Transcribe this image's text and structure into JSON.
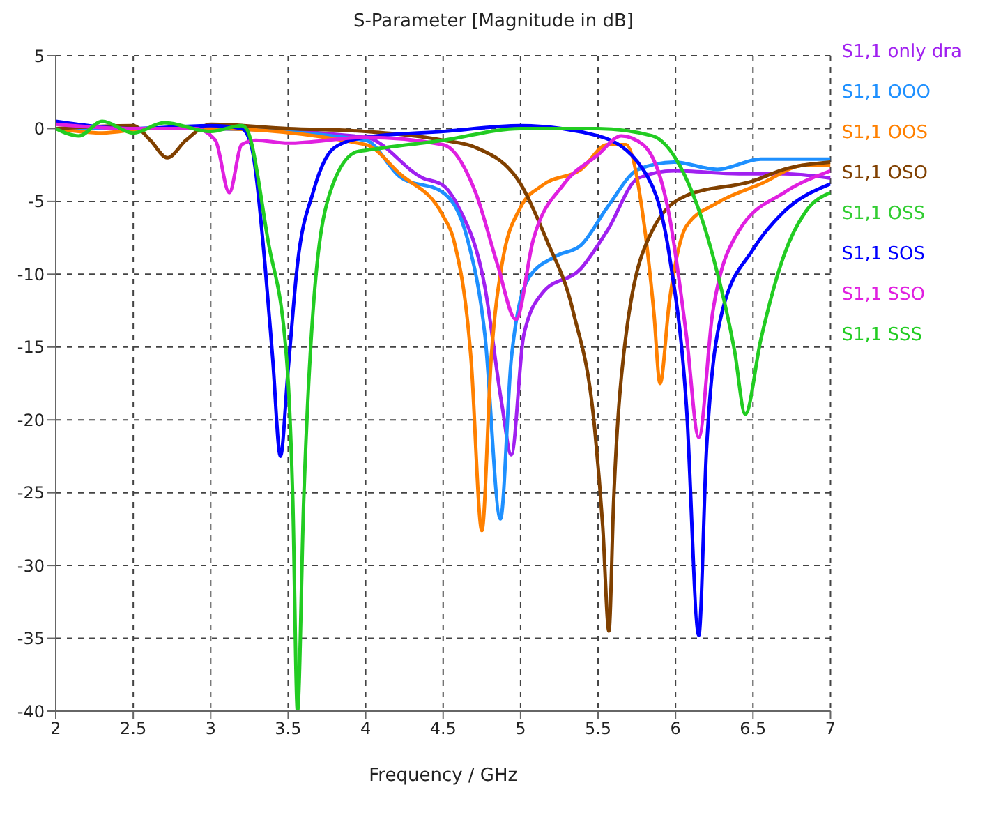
{
  "chart_data": {
    "type": "line",
    "title": "S-Parameter [Magnitude in dB]",
    "xlabel": "Frequency / GHz",
    "xlim": [
      2,
      7
    ],
    "xticks": [
      2,
      2.5,
      3,
      3.5,
      4,
      4.5,
      5,
      5.5,
      6,
      6.5,
      7
    ],
    "ylim": [
      -40,
      5
    ],
    "yticks": [
      5,
      0,
      -5,
      -10,
      -15,
      -20,
      -25,
      -30,
      -35,
      -40
    ],
    "grid": true,
    "legend": "right",
    "marker": "none",
    "line_style": "solid",
    "series": [
      {
        "name": "S1,1 only dra",
        "color": "#a020f0",
        "x": [
          2,
          3,
          4,
          4.37,
          4.5,
          4.6,
          4.77,
          4.88,
          4.94,
          5.02,
          5.14,
          5.39,
          5.56,
          5.76,
          5.99,
          6.41,
          6.7,
          7
        ],
        "values": [
          0,
          0,
          -0.6,
          -3.4,
          -3.9,
          -5.4,
          -10.9,
          -19,
          -22.4,
          -14.2,
          -11.3,
          -9.6,
          -7,
          -3.4,
          -2.9,
          -3.1,
          -3.1,
          -3.4
        ]
      },
      {
        "name": "S1,1 OOO",
        "color": "#1e90ff",
        "x": [
          2,
          3,
          4,
          4.22,
          4.5,
          4.66,
          4.77,
          4.87,
          4.94,
          5.05,
          5.22,
          5.39,
          5.56,
          5.76,
          5.99,
          6.27,
          6.55,
          7
        ],
        "values": [
          0,
          0,
          -0.8,
          -3.3,
          -4.4,
          -7.7,
          -14.2,
          -26.8,
          -15.8,
          -10.3,
          -8.8,
          -8,
          -5.4,
          -2.8,
          -2.3,
          -2.8,
          -2.1,
          -2.1
        ]
      },
      {
        "name": "S1,1 OOS",
        "color": "#ff8000",
        "x": [
          2,
          2.3,
          2.6,
          3,
          4,
          4.22,
          4.5,
          4.57,
          4.68,
          4.75,
          4.81,
          4.88,
          5,
          5.14,
          5.39,
          5.56,
          5.68,
          5.79,
          5.86,
          5.9,
          5.96,
          6.07,
          6.27,
          6.55,
          6.84,
          7
        ],
        "values": [
          0,
          -0.3,
          0,
          0,
          -1.1,
          -3.1,
          -6,
          -7.7,
          -15.8,
          -27.6,
          -15.8,
          -9.3,
          -5.4,
          -3.9,
          -2.8,
          -1.1,
          -1.1,
          -6,
          -12.6,
          -17.5,
          -11.9,
          -6.7,
          -5.1,
          -3.8,
          -2.5,
          -2.5
        ]
      },
      {
        "name": "S1,1 OSO",
        "color": "#804000",
        "x": [
          2,
          2.5,
          2.61,
          2.72,
          2.84,
          3,
          3.5,
          4,
          4.5,
          4.71,
          5,
          5.17,
          5.34,
          5.48,
          5.53,
          5.57,
          5.6,
          5.68,
          5.85,
          6.07,
          6.5,
          6.7,
          7
        ],
        "values": [
          0,
          0.2,
          -0.8,
          -2,
          -0.8,
          0.3,
          0,
          -0.2,
          -0.8,
          -1.3,
          -3.8,
          -7.7,
          -12.6,
          -20.8,
          -27.3,
          -34.5,
          -25.7,
          -14.2,
          -7,
          -4.6,
          -3.6,
          -2.8,
          -2.3
        ]
      },
      {
        "name": "S1,1 OSS",
        "color": "#32cd32"
      },
      {
        "name": "S1,1 SOS",
        "color": "#0000ff",
        "x": [
          2,
          2.5,
          3,
          3.2,
          3.26,
          3.35,
          3.4,
          3.45,
          3.5,
          3.56,
          3.66,
          3.8,
          4,
          4.5,
          5,
          5.5,
          5.79,
          5.96,
          6.07,
          6.15,
          6.2,
          6.3,
          6.5,
          6.7,
          7
        ],
        "values": [
          0.5,
          0,
          0.2,
          0,
          -1.1,
          -9.3,
          -15.8,
          -22.5,
          -16.5,
          -9.3,
          -4.4,
          -1.3,
          -0.6,
          -0.2,
          0.2,
          -0.5,
          -2.8,
          -8.7,
          -19,
          -34.8,
          -22,
          -12.6,
          -8.3,
          -5.7,
          -3.8
        ]
      },
      {
        "name": "S1,1 SSO",
        "color": "#e020e0",
        "x": [
          2,
          2.5,
          2.9,
          3.03,
          3.12,
          3.2,
          3.29,
          3.5,
          4,
          4.5,
          4.71,
          4.85,
          4.97,
          5.08,
          5.28,
          5.5,
          5.65,
          5.79,
          5.96,
          6.07,
          6.15,
          6.24,
          6.41,
          6.7,
          7
        ],
        "values": [
          0.3,
          0,
          0,
          -0.8,
          -4.4,
          -1.1,
          -0.8,
          -1,
          -0.6,
          -1.1,
          -4.4,
          -9.3,
          -13.1,
          -7.7,
          -3.8,
          -1.8,
          -0.5,
          -1.1,
          -6,
          -14.2,
          -21.2,
          -12.6,
          -7,
          -4.4,
          -2.9
        ]
      },
      {
        "name": "S1,1 SSS",
        "color": "#22cc22",
        "x": [
          2,
          2.15,
          2.3,
          2.5,
          2.7,
          3,
          3.2,
          3.23,
          3.37,
          3.49,
          3.53,
          3.56,
          3.6,
          3.66,
          3.77,
          3.94,
          4,
          4.5,
          5,
          5.5,
          5.85,
          6.04,
          6.24,
          6.38,
          6.45,
          6.55,
          6.7,
          6.84,
          7
        ],
        "values": [
          0,
          -0.5,
          0.5,
          -0.3,
          0.4,
          -0.2,
          0.2,
          0,
          -7.7,
          -15.8,
          -25.6,
          -40,
          -25.6,
          -12.6,
          -4.4,
          -1.6,
          -1.5,
          -0.8,
          0,
          0,
          -0.5,
          -2.8,
          -8.7,
          -15.2,
          -19.6,
          -14.5,
          -8.7,
          -5.7,
          -4.4
        ]
      }
    ]
  }
}
